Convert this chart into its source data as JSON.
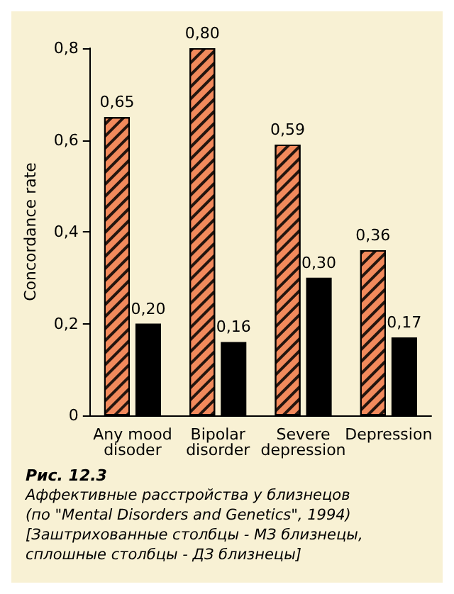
{
  "chart_data": {
    "type": "bar",
    "ylabel": "Concordance rate",
    "categories": [
      "Any mood\ndisoder",
      "Bipolar\ndisorder",
      "Severe\ndepression",
      "Depression"
    ],
    "series": [
      {
        "color": "#f28a5c",
        "values": [
          0.65,
          0.8,
          0.59,
          0.36
        ],
        "value_labels": [
          "0,65",
          "0,80",
          "0,59",
          "0,36"
        ]
      },
      {
        "color": "#000000",
        "values": [
          0.2,
          0.16,
          0.3,
          0.17
        ],
        "value_labels": [
          "0,20",
          "0,16",
          "0,30",
          "0,17"
        ]
      }
    ],
    "ylim": [
      0,
      0.8
    ],
    "yticks": [
      {
        "value": 0,
        "label": "0"
      },
      {
        "value": 0.2,
        "label": "0,2"
      },
      {
        "value": 0.4,
        "label": "0,4"
      },
      {
        "value": 0.6,
        "label": "0,6"
      },
      {
        "value": 0.8,
        "label": "0,8"
      }
    ],
    "grid": false,
    "annotations": [
      "Рис. 12.3",
      "Аффективные расстройства у близнецов",
      "(по \"Mental Disorders and Genetics\", 1994)",
      "[Заштрихованные столбцы - МЗ близнецы,",
      "сплошные столбцы - ДЗ близнецы]"
    ]
  }
}
